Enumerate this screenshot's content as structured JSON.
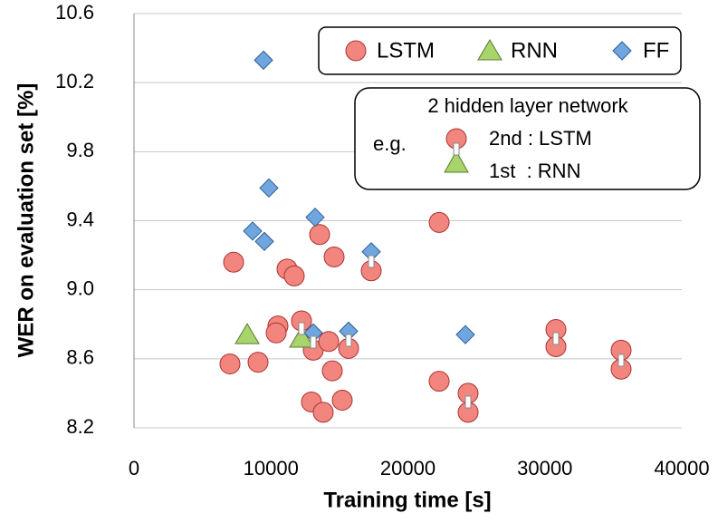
{
  "chart_data": {
    "type": "scatter",
    "x_label": "Training time [s]",
    "y_label": "WER on evaluation set [%]",
    "xlim": [
      0,
      40000
    ],
    "xticks": [
      0,
      10000,
      20000,
      30000,
      40000
    ],
    "ylim": [
      8.2,
      10.6
    ],
    "yticks": [
      8.2,
      8.6,
      {
        "value": 9,
        "label": "9.0"
      },
      9.4,
      9.8,
      10.2,
      10.6
    ],
    "grid": true,
    "series": [
      {
        "name": "LSTM",
        "color": "#f2867f",
        "marker": "circle",
        "x": [
          7008,
          7273,
          9058,
          10512,
          10380,
          11174,
          11702,
          12231,
          13091,
          12958,
          13554,
          13818,
          14215,
          14612,
          14479,
          15207,
          15669,
          17322,
          22281,
          22281,
          24397,
          24397,
          30810,
          30810,
          35570,
          35570
        ],
        "y": [
          8.57,
          9.16,
          8.58,
          8.79,
          8.75,
          9.12,
          9.08,
          8.82,
          8.65,
          8.35,
          9.32,
          8.29,
          8.7,
          9.19,
          8.53,
          8.36,
          8.66,
          9.11,
          9.39,
          8.47,
          8.4,
          8.29,
          8.77,
          8.67,
          8.65,
          8.54
        ]
      },
      {
        "name": "RNN",
        "color": "#a8d46c",
        "marker": "triangle",
        "x": [
          8264,
          12231
        ],
        "y": [
          8.74,
          8.72
        ]
      },
      {
        "name": "FF",
        "color": "#6fa6e0",
        "marker": "diamond",
        "x": [
          9455,
          9851,
          8661,
          9521,
          13223,
          17322,
          13091,
          15669,
          24198
        ],
        "y": [
          10.33,
          9.59,
          9.34,
          9.28,
          9.42,
          9.22,
          8.75,
          8.76,
          8.74
        ]
      }
    ],
    "annotation": {
      "title": "2 hidden layer network",
      "prefix": "e.g.",
      "upper": "2nd : LSTM",
      "lower": "1st  : RNN"
    }
  }
}
